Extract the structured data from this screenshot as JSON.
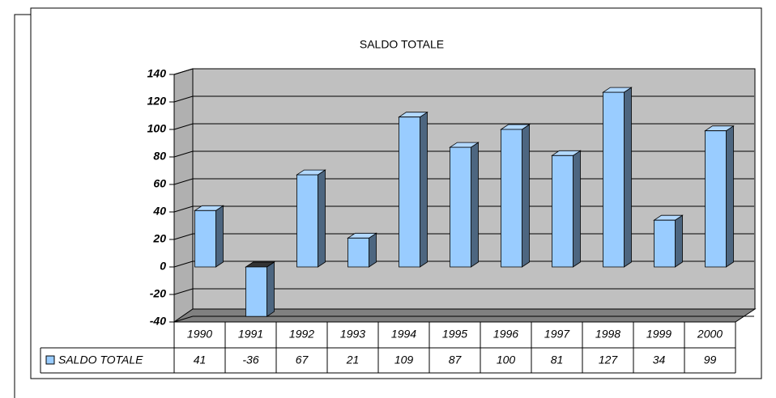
{
  "chart_data": {
    "type": "bar",
    "title": "SALDO TOTALE",
    "categories": [
      "1990",
      "1991",
      "1992",
      "1993",
      "1994",
      "1995",
      "1996",
      "1997",
      "1998",
      "1999",
      "2000"
    ],
    "series": [
      {
        "name": "SALDO TOTALE",
        "color": "#99ccff",
        "values": [
          41,
          -36,
          67,
          21,
          109,
          87,
          100,
          81,
          127,
          34,
          99
        ]
      }
    ],
    "ylim": [
      -40,
      140
    ],
    "yticks": [
      -40,
      -20,
      0,
      20,
      40,
      60,
      80,
      100,
      120,
      140
    ],
    "grid": true
  }
}
